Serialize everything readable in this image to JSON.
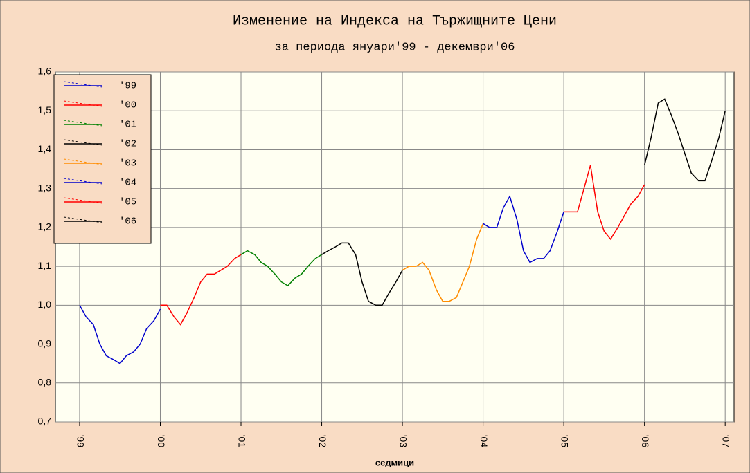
{
  "chart_data": {
    "type": "line",
    "title": "Изменение на Индекса на Тържищните Цени",
    "subtitle": "за периода януари'99 - декември'06",
    "x_label": "седмици",
    "xlim": [
      1998.7,
      2007.11
    ],
    "xticks": [
      {
        "value": 1999,
        "label": "'99"
      },
      {
        "value": 2000,
        "label": "'00"
      },
      {
        "value": 2001,
        "label": "'01"
      },
      {
        "value": 2002,
        "label": "'02"
      },
      {
        "value": 2003,
        "label": "'03"
      },
      {
        "value": 2004,
        "label": "'04"
      },
      {
        "value": 2005,
        "label": "'05"
      },
      {
        "value": 2006,
        "label": "'06"
      },
      {
        "value": 2007,
        "label": "'07"
      }
    ],
    "ylim": [
      0.7,
      1.6
    ],
    "yticks": [
      {
        "value": 0.7,
        "label": "0,7"
      },
      {
        "value": 0.8,
        "label": "0,8"
      },
      {
        "value": 0.9,
        "label": "0,9"
      },
      {
        "value": 1.0,
        "label": "1,0"
      },
      {
        "value": 1.1,
        "label": "1,1"
      },
      {
        "value": 1.2,
        "label": "1,2"
      },
      {
        "value": 1.3,
        "label": "1,3"
      },
      {
        "value": 1.4,
        "label": "1,4"
      },
      {
        "value": 1.5,
        "label": "1,5"
      },
      {
        "value": 1.6,
        "label": "1,6"
      }
    ],
    "grid": true,
    "legend": "upper left",
    "series": [
      {
        "name": "'99",
        "color": "#0000cc",
        "x": [
          1999,
          1999.08,
          1999.17,
          1999.25,
          1999.33,
          1999.42,
          1999.5,
          1999.58,
          1999.67,
          1999.75,
          1999.83,
          1999.92,
          2000
        ],
        "values": [
          1.0,
          0.97,
          0.95,
          0.9,
          0.87,
          0.86,
          0.85,
          0.87,
          0.88,
          0.9,
          0.94,
          0.96,
          0.99
        ]
      },
      {
        "name": "'00",
        "color": "#ff0000",
        "x": [
          2000,
          2000.08,
          2000.17,
          2000.25,
          2000.33,
          2000.42,
          2000.5,
          2000.58,
          2000.67,
          2000.75,
          2000.83,
          2000.92,
          2001
        ],
        "values": [
          1.0,
          1.0,
          0.97,
          0.95,
          0.98,
          1.02,
          1.06,
          1.08,
          1.08,
          1.09,
          1.1,
          1.12,
          1.13
        ]
      },
      {
        "name": "'01",
        "color": "#008000",
        "x": [
          2001,
          2001.08,
          2001.17,
          2001.25,
          2001.33,
          2001.42,
          2001.5,
          2001.58,
          2001.67,
          2001.75,
          2001.83,
          2001.92,
          2002
        ],
        "values": [
          1.13,
          1.14,
          1.13,
          1.11,
          1.1,
          1.08,
          1.06,
          1.05,
          1.07,
          1.08,
          1.1,
          1.12,
          1.13
        ]
      },
      {
        "name": "'02",
        "color": "#000000",
        "x": [
          2002,
          2002.08,
          2002.17,
          2002.25,
          2002.33,
          2002.42,
          2002.5,
          2002.58,
          2002.67,
          2002.75,
          2002.83,
          2002.92,
          2003
        ],
        "values": [
          1.13,
          1.14,
          1.15,
          1.16,
          1.16,
          1.13,
          1.06,
          1.01,
          1.0,
          1.0,
          1.03,
          1.06,
          1.09
        ]
      },
      {
        "name": "'03",
        "color": "#ff8c00",
        "x": [
          2003,
          2003.08,
          2003.17,
          2003.25,
          2003.33,
          2003.42,
          2003.5,
          2003.58,
          2003.67,
          2003.75,
          2003.83,
          2003.92,
          2004
        ],
        "values": [
          1.09,
          1.1,
          1.1,
          1.11,
          1.09,
          1.04,
          1.01,
          1.01,
          1.02,
          1.06,
          1.1,
          1.17,
          1.21
        ]
      },
      {
        "name": "'04",
        "color": "#0000cc",
        "x": [
          2004,
          2004.08,
          2004.17,
          2004.25,
          2004.33,
          2004.42,
          2004.5,
          2004.58,
          2004.67,
          2004.75,
          2004.83,
          2004.92,
          2005
        ],
        "values": [
          1.21,
          1.2,
          1.2,
          1.25,
          1.28,
          1.22,
          1.14,
          1.11,
          1.12,
          1.12,
          1.14,
          1.19,
          1.24
        ]
      },
      {
        "name": "'05",
        "color": "#ff0000",
        "x": [
          2005,
          2005.08,
          2005.17,
          2005.25,
          2005.33,
          2005.42,
          2005.5,
          2005.58,
          2005.67,
          2005.75,
          2005.83,
          2005.92,
          2006
        ],
        "values": [
          1.24,
          1.24,
          1.24,
          1.3,
          1.36,
          1.24,
          1.19,
          1.17,
          1.2,
          1.23,
          1.26,
          1.28,
          1.31
        ]
      },
      {
        "name": "'06",
        "color": "#000000",
        "x": [
          2006,
          2006.08,
          2006.17,
          2006.25,
          2006.33,
          2006.42,
          2006.5,
          2006.58,
          2006.67,
          2006.75,
          2006.83,
          2006.92,
          2007
        ],
        "values": [
          1.36,
          1.43,
          1.52,
          1.53,
          1.49,
          1.44,
          1.39,
          1.34,
          1.32,
          1.32,
          1.37,
          1.43,
          1.5
        ]
      }
    ]
  }
}
